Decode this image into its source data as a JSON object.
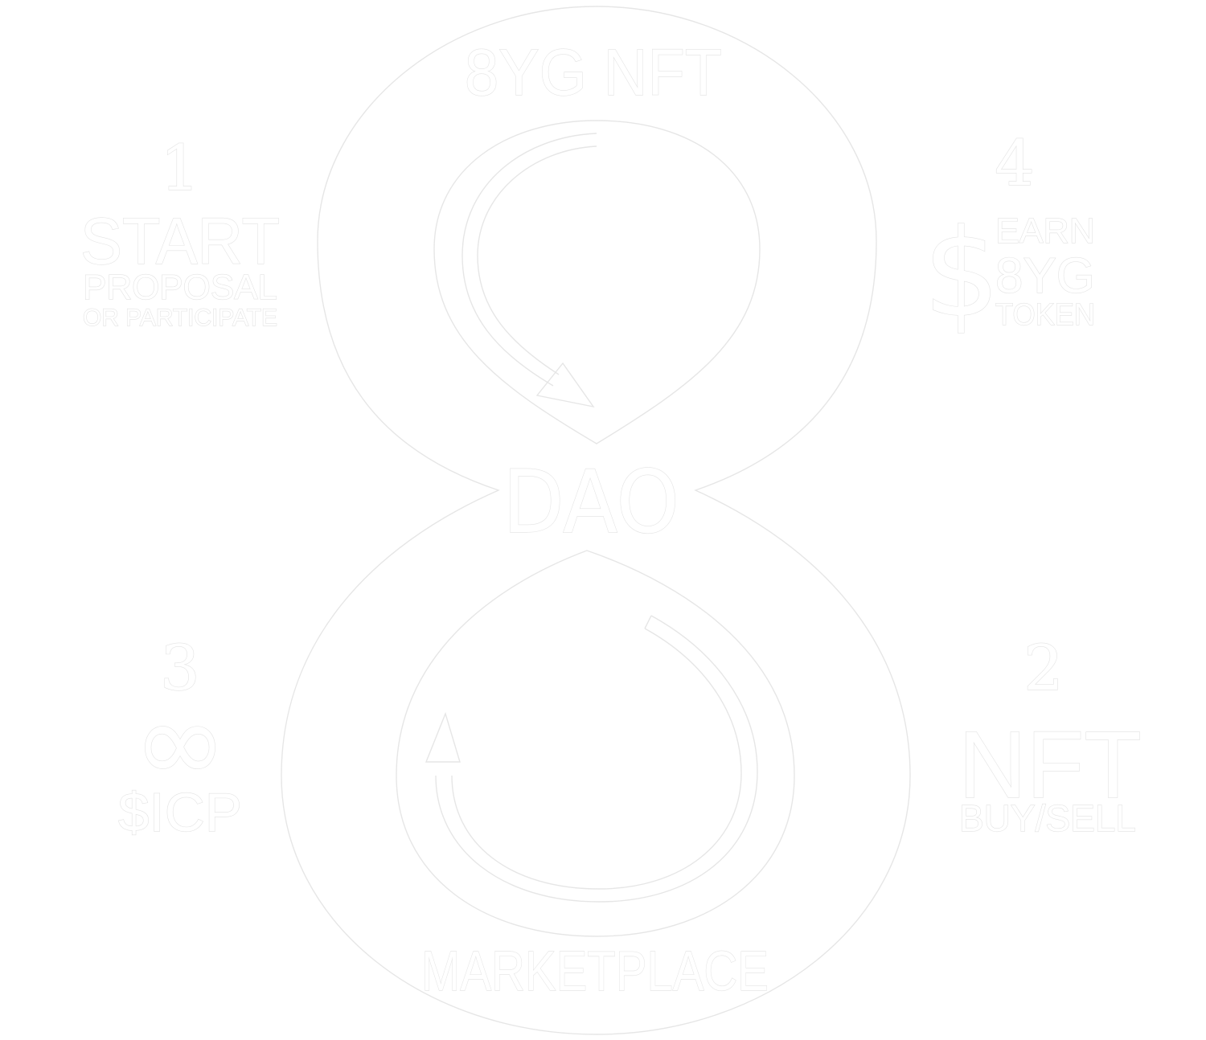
{
  "top_label": "8YG NFT",
  "center_label": "DAO",
  "bottom_label": "MARKETPLACE",
  "steps": {
    "start": {
      "number": "1",
      "title": "START",
      "line1": "PROPOSAL",
      "line2": "OR PARTICIPATE"
    },
    "nft": {
      "number": "2",
      "title": "NFT",
      "subtitle": "BUY/SELL"
    },
    "icp": {
      "number": "3",
      "symbol": "∞",
      "label": "$ICP"
    },
    "earn": {
      "number": "4",
      "symbol": "$",
      "line1": "EARN",
      "line2": "8YG",
      "line3": "TOKEN"
    }
  }
}
